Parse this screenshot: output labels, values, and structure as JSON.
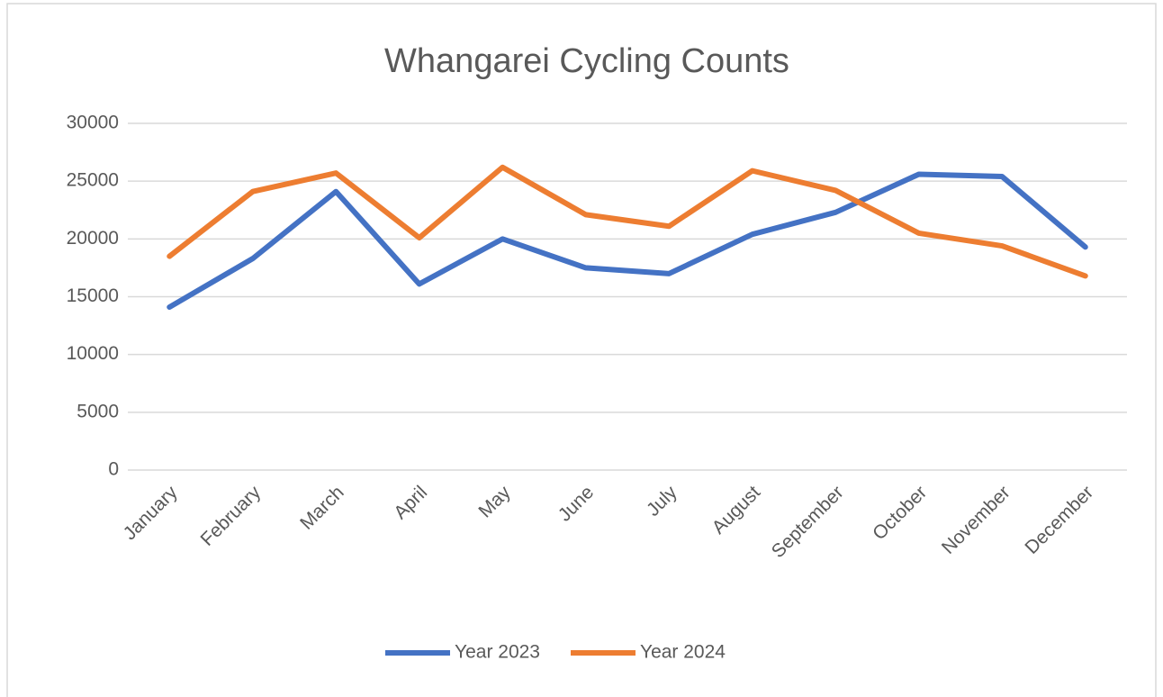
{
  "chart_data": {
    "type": "line",
    "title": "Whangarei Cycling Counts",
    "categories": [
      "January",
      "February",
      "March",
      "April",
      "May",
      "June",
      "July",
      "August",
      "September",
      "October",
      "November",
      "December"
    ],
    "series": [
      {
        "name": "Year 2023",
        "color": "#4472c4",
        "values": [
          14100,
          18300,
          24100,
          16100,
          20000,
          17500,
          17000,
          20400,
          22300,
          25600,
          25400,
          19300
        ]
      },
      {
        "name": "Year 2024",
        "color": "#ed7d31",
        "values": [
          18500,
          24100,
          25700,
          20100,
          26200,
          22100,
          21100,
          25900,
          24200,
          20500,
          19400,
          16800
        ]
      }
    ],
    "ylim": [
      0,
      30000
    ],
    "yticks": [
      0,
      5000,
      10000,
      15000,
      20000,
      25000,
      30000
    ],
    "grid": true,
    "legend": "bottom"
  }
}
